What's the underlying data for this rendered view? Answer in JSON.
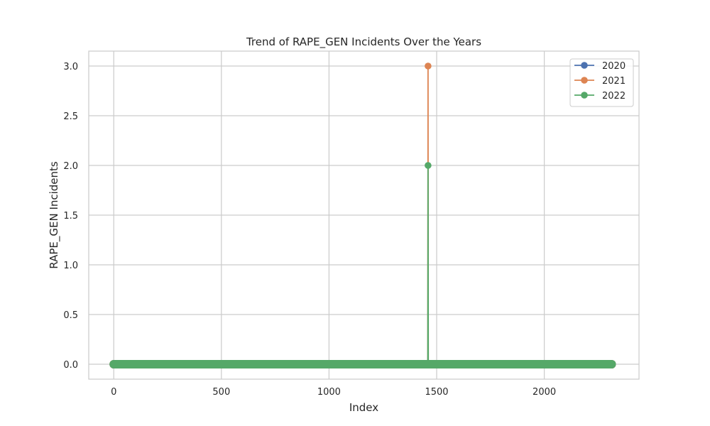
{
  "chart_data": {
    "type": "line",
    "title": "Trend of RAPE_GEN Incidents Over the Years",
    "xlabel": "Index",
    "ylabel": "RAPE_GEN Incidents",
    "xlim": [
      -116.2,
      2440
    ],
    "ylim": [
      -0.15,
      3.15
    ],
    "xticks": [
      0,
      500,
      1000,
      1500,
      2000
    ],
    "yticks": [
      0.0,
      0.5,
      1.0,
      1.5,
      2.0,
      2.5,
      3.0
    ],
    "xtick_labels": [
      "0",
      "500",
      "1000",
      "1500",
      "2000"
    ],
    "ytick_labels": [
      "0.0",
      "0.5",
      "1.0",
      "1.5",
      "2.0",
      "2.5",
      "3.0"
    ],
    "grid": true,
    "legend_position": "top-right",
    "x_range": [
      0,
      2313
    ],
    "series": [
      {
        "name": "2020",
        "color": "#4c72b0",
        "baseline": 0,
        "peaks": []
      },
      {
        "name": "2021",
        "color": "#dd8452",
        "baseline": 0,
        "peaks": [
          {
            "x": 1460,
            "y": 3
          }
        ]
      },
      {
        "name": "2022",
        "color": "#55a868",
        "baseline": 0,
        "peaks": [
          {
            "x": 1460,
            "y": 2
          }
        ]
      }
    ]
  }
}
